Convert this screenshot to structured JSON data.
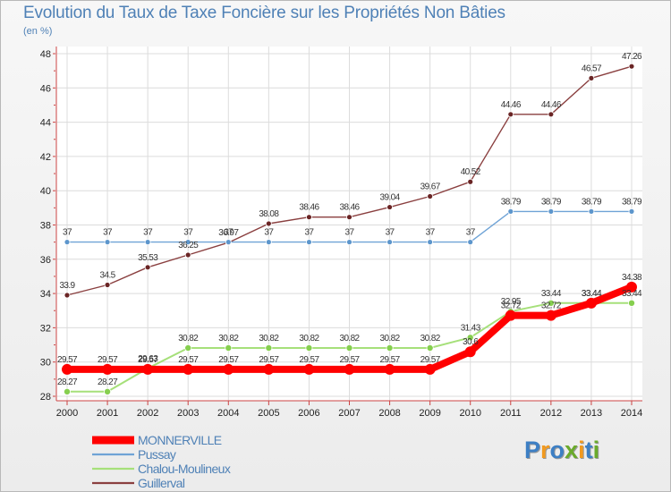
{
  "chart_data": {
    "type": "line",
    "title": "Evolution du Taux de Taxe Foncière sur les Propriétés Non Bâties",
    "subtitle": "(en %)",
    "xlabel": "",
    "ylabel": "(en %)",
    "x": [
      "2000",
      "2001",
      "2002",
      "2003",
      "2004",
      "2005",
      "2006",
      "2007",
      "2008",
      "2009",
      "2010",
      "2011",
      "2012",
      "2013",
      "2014"
    ],
    "ylim": [
      28,
      48
    ],
    "yticks": [
      "28",
      "30",
      "32",
      "34",
      "36",
      "38",
      "40",
      "42",
      "44",
      "46",
      "48"
    ],
    "grid": true,
    "legend_position": "bottom-left",
    "series": [
      {
        "name": "MONNERVILLE",
        "color": "#ff0000",
        "marker_color": "#ff0000",
        "values": [
          29.57,
          29.57,
          29.57,
          29.57,
          29.57,
          29.57,
          29.57,
          29.57,
          29.57,
          29.57,
          30.6,
          32.72,
          32.72,
          33.44,
          34.38
        ],
        "labels": [
          "29.57",
          "29.57",
          "29.57",
          "29.57",
          "29.57",
          "29.57",
          "29.57",
          "29.57",
          "29.57",
          "29.57",
          "30.6",
          "32.72",
          "32.72",
          "33.44",
          "34.38"
        ]
      },
      {
        "name": "Pussay",
        "color": "#6fa3d6",
        "marker_color": "#5d96cc",
        "values": [
          37,
          37,
          37,
          37,
          37,
          37,
          37,
          37,
          37,
          37,
          37,
          38.79,
          38.79,
          38.79,
          38.79
        ],
        "labels": [
          "37",
          "37",
          "37",
          "37",
          "37",
          "37",
          "37",
          "37",
          "37",
          "37",
          "37",
          "38.79",
          "38.79",
          "38.79",
          "38.79"
        ]
      },
      {
        "name": "Chalou-Moulineux",
        "color": "#a6e07a",
        "marker_color": "#86cf4f",
        "values": [
          28.27,
          28.27,
          29.63,
          30.82,
          30.82,
          30.82,
          30.82,
          30.82,
          30.82,
          30.82,
          31.43,
          32.95,
          33.44,
          33.44,
          33.44
        ],
        "labels": [
          "28.27",
          "28.27",
          "29.63",
          "30.82",
          "30.82",
          "30.82",
          "30.82",
          "30.82",
          "30.82",
          "30.82",
          "31.43",
          "32.95",
          "33.44",
          "33.44",
          "33.44"
        ]
      },
      {
        "name": "Guillerval",
        "color": "#8a3f3f",
        "marker_color": "#6a2525",
        "values": [
          33.9,
          34.5,
          35.53,
          36.25,
          36.97,
          38.08,
          38.46,
          38.46,
          39.04,
          39.67,
          40.52,
          44.46,
          44.46,
          46.57,
          47.26
        ],
        "labels": [
          "33.9",
          "34.5",
          "35.53",
          "36.25",
          "36.97",
          "38.08",
          "38.46",
          "38.46",
          "39.04",
          "39.67",
          "40.52",
          "44.46",
          "44.46",
          "46.57",
          "47.26"
        ]
      }
    ]
  },
  "brand": {
    "letters": [
      "P",
      "r",
      "o",
      "x",
      "i",
      "t",
      "i"
    ],
    "colors": [
      "#3d7fc4",
      "#f29a1f",
      "#3d7fc4",
      "#6aaa2b",
      "#f29a1f",
      "#3d7fc4",
      "#6aaa2b"
    ]
  }
}
